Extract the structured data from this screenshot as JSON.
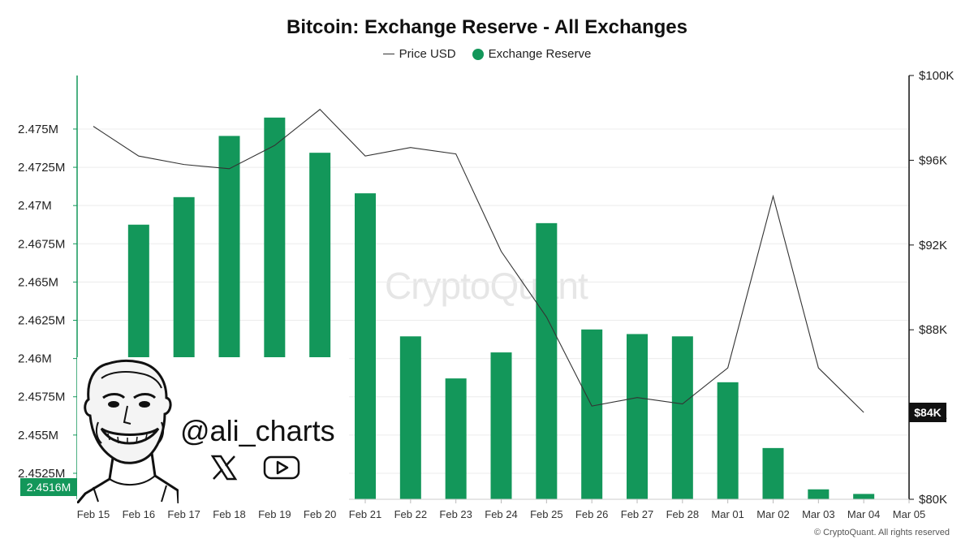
{
  "chart_data": {
    "type": "bar",
    "title": "Bitcoin: Exchange Reserve - All Exchanges",
    "legend_position": "top-center",
    "grid": true,
    "categories": [
      "Feb 15",
      "Feb 16",
      "Feb 17",
      "Feb 18",
      "Feb 19",
      "Feb 20",
      "Feb 21",
      "Feb 22",
      "Feb 23",
      "Feb 24",
      "Feb 25",
      "Feb 26",
      "Feb 27",
      "Feb 28",
      "Mar 01",
      "Mar 02",
      "Mar 03",
      "Mar 04",
      "Mar 05"
    ],
    "series": [
      {
        "name": "Exchange Reserve",
        "type": "bar",
        "axis": "left",
        "color": "#13975a",
        "values": [
          null,
          2.46875,
          2.47055,
          2.47455,
          2.47575,
          2.47345,
          2.4708,
          2.46145,
          2.4587,
          2.4604,
          2.46885,
          2.4619,
          2.4616,
          2.46145,
          2.45845,
          2.45415,
          2.45145,
          2.45115,
          null
        ]
      },
      {
        "name": "Price USD",
        "type": "line",
        "axis": "right",
        "color": "#333333",
        "values": [
          97600,
          96200,
          95800,
          95600,
          96700,
          98400,
          96200,
          96600,
          96300,
          91700,
          88600,
          84400,
          84800,
          84500,
          86200,
          94300,
          86200,
          84100,
          null
        ]
      }
    ],
    "y_left": {
      "ylim": [
        2.4508,
        2.4785
      ],
      "ticks": [
        2.4525,
        2.455,
        2.4575,
        2.46,
        2.4625,
        2.465,
        2.4675,
        2.47,
        2.4725,
        2.475
      ],
      "tick_labels": [
        "2.4525M",
        "2.455M",
        "2.4575M",
        "2.46M",
        "2.4625M",
        "2.465M",
        "2.4675M",
        "2.47M",
        "2.4725M",
        "2.475M"
      ],
      "current_label": "2.4516M",
      "current_value": 2.4516
    },
    "y_right": {
      "ylim": [
        80000,
        100000
      ],
      "ticks": [
        80000,
        84000,
        88000,
        92000,
        96000,
        100000
      ],
      "tick_labels": [
        "$80K",
        "$84K",
        "$88K",
        "$92K",
        "$96K",
        "$100K"
      ],
      "current_label": "$84K",
      "current_value": 84100
    },
    "watermark": "CryptoQuant",
    "copyright": "© CryptoQuant. All rights reserved"
  },
  "badge": {
    "handle": "@ali_charts",
    "icons": [
      "x-logo-icon",
      "youtube-icon",
      "meme-face-icon"
    ]
  },
  "colors": {
    "bar": "#13975a",
    "line": "#333333",
    "left_axis": "#13975a",
    "right_axis": "#111111"
  }
}
